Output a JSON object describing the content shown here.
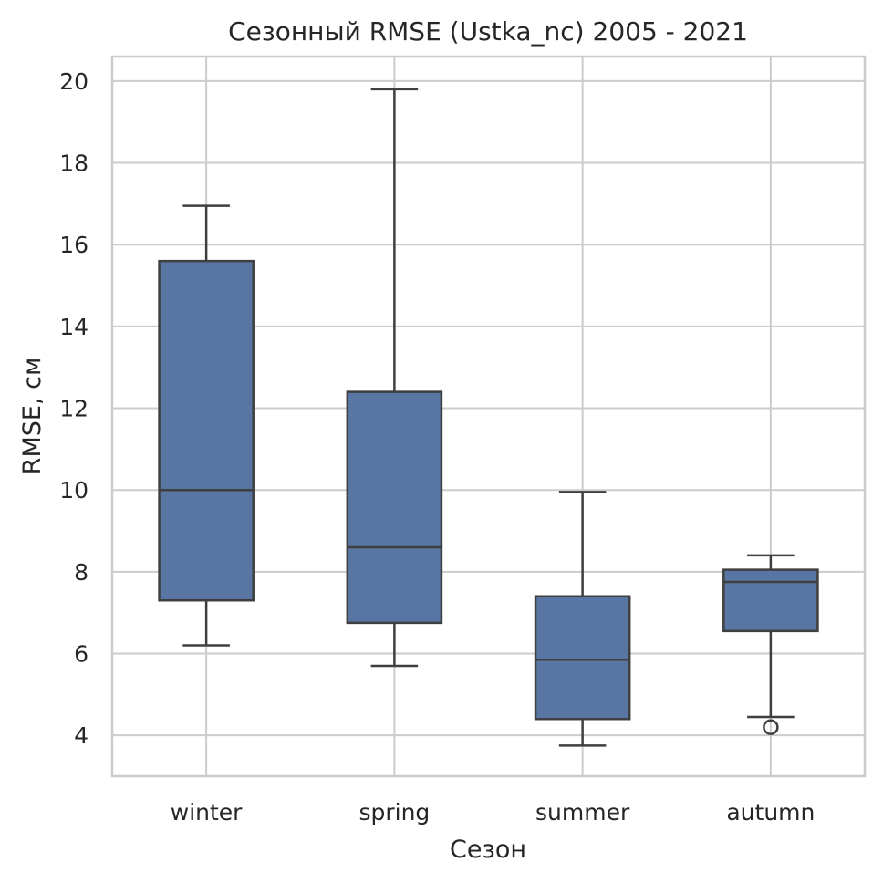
{
  "chart_data": {
    "type": "box",
    "title": "Сезонный RMSE (Ustka_nc) 2005 - 2021",
    "xlabel": "Сезон",
    "ylabel": "RMSE, см",
    "ylim": [
      3,
      20.6
    ],
    "yticks": [
      4,
      6,
      8,
      10,
      12,
      14,
      16,
      18,
      20
    ],
    "grid": true,
    "color": "#5875a4",
    "categories": [
      "winter",
      "spring",
      "summer",
      "autumn"
    ],
    "boxes": [
      {
        "category": "winter",
        "whisker_low": 6.2,
        "q1": 7.3,
        "median": 10.0,
        "q3": 15.6,
        "whisker_high": 16.95,
        "outliers": []
      },
      {
        "category": "spring",
        "whisker_low": 5.7,
        "q1": 6.75,
        "median": 8.6,
        "q3": 12.4,
        "whisker_high": 19.8,
        "outliers": []
      },
      {
        "category": "summer",
        "whisker_low": 3.75,
        "q1": 4.4,
        "median": 5.85,
        "q3": 7.4,
        "whisker_high": 9.95,
        "outliers": []
      },
      {
        "category": "autumn",
        "whisker_low": 4.45,
        "q1": 6.55,
        "median": 7.75,
        "q3": 8.05,
        "whisker_high": 8.4,
        "outliers": [
          4.2
        ]
      }
    ]
  }
}
